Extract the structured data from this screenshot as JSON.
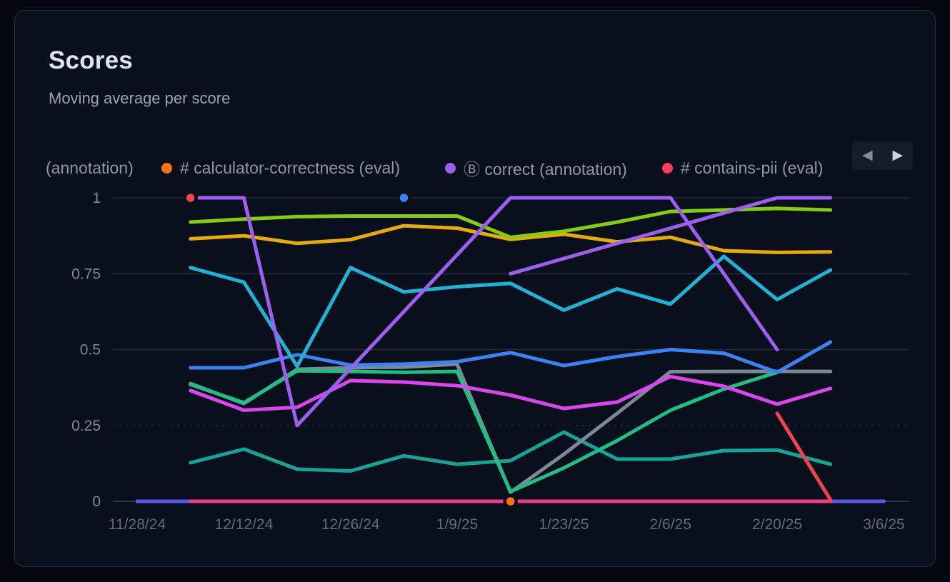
{
  "card": {
    "title": "Scores",
    "subtitle": "Moving average per score"
  },
  "legend": {
    "items": [
      {
        "label": "(annotation)",
        "color": null
      },
      {
        "label": "# calculator-correctness (eval)",
        "color": "#f97316"
      },
      {
        "label": "Ⓑ correct (annotation)",
        "color": "#9d5ef2"
      },
      {
        "label": "# contains-pii (eval)",
        "color": "#fb3d55"
      }
    ],
    "nav": {
      "prev_icon": "◀",
      "next_icon": "▶"
    }
  },
  "chart_data": {
    "type": "line",
    "title": "Scores",
    "subtitle": "Moving average per score",
    "x_axis": {
      "tick_labels": [
        "11/28/24",
        "12/12/24",
        "12/26/24",
        "1/9/25",
        "1/23/25",
        "2/6/25",
        "2/20/25",
        "3/6/25"
      ],
      "tick_weeks": [
        -1,
        1,
        3,
        5,
        7,
        9,
        11,
        13
      ]
    },
    "y_axis": {
      "tick_labels": [
        "1",
        "0.75",
        "0.5",
        "0.25",
        "0"
      ],
      "tick_values": [
        1,
        0.75,
        0.5,
        0.25,
        0
      ],
      "range": [
        0,
        1
      ],
      "dashed_tick": 0.25
    },
    "week_dates": [
      "12/5/24",
      "12/12/24",
      "12/19/24",
      "12/26/24",
      "1/2/25",
      "1/9/25",
      "1/16/25",
      "1/23/25",
      "1/30/25",
      "2/6/25",
      "2/13/25",
      "2/20/25",
      "2/27/25"
    ],
    "grid": true,
    "legend_position": "top",
    "series": [
      {
        "name": "indigo-baseline",
        "color": "#5558e8",
        "points": [
          [
            -1,
            0
          ],
          [
            13,
            0
          ]
        ]
      },
      {
        "name": "pink-baseline",
        "color": "#ed3e89",
        "points": [
          [
            0,
            0
          ],
          [
            12,
            0
          ]
        ]
      },
      {
        "name": "teal",
        "color": "#17a295",
        "points": [
          [
            0,
            0.127
          ],
          [
            1,
            0.172
          ],
          [
            2,
            0.106
          ],
          [
            3,
            0.1
          ],
          [
            4,
            0.15
          ],
          [
            5,
            0.122
          ],
          [
            6,
            0.134
          ],
          [
            7,
            0.228
          ],
          [
            8,
            0.139
          ],
          [
            9,
            0.139
          ],
          [
            10,
            0.167
          ],
          [
            11,
            0.169
          ],
          [
            12,
            0.122
          ]
        ]
      },
      {
        "name": "gray",
        "color": "#7e8795",
        "points": [
          [
            0,
            0.388
          ],
          [
            1,
            0.322
          ],
          [
            2,
            0.435
          ],
          [
            3,
            0.44
          ],
          [
            4,
            0.442
          ],
          [
            5,
            0.452
          ],
          [
            6,
            0.03
          ],
          [
            7,
            0.155
          ],
          [
            8,
            0.29
          ],
          [
            9,
            0.427
          ],
          [
            10,
            0.428
          ],
          [
            11,
            0.428
          ],
          [
            12,
            0.428
          ]
        ]
      },
      {
        "name": "emerald",
        "color": "#1fbe83",
        "points": [
          [
            0,
            0.385
          ],
          [
            1,
            0.325
          ],
          [
            2,
            0.43
          ],
          [
            3,
            0.428
          ],
          [
            4,
            0.425
          ],
          [
            5,
            0.428
          ],
          [
            6,
            0.032
          ],
          [
            7,
            0.11
          ],
          [
            8,
            0.2
          ],
          [
            9,
            0.3
          ],
          [
            10,
            0.37
          ],
          [
            11,
            0.425
          ]
        ]
      },
      {
        "name": "magenta",
        "color": "#d946ef",
        "points": [
          [
            0,
            0.365
          ],
          [
            1,
            0.3
          ],
          [
            2,
            0.31
          ],
          [
            3,
            0.398
          ],
          [
            4,
            0.393
          ],
          [
            5,
            0.381
          ],
          [
            6,
            0.35
          ],
          [
            7,
            0.306
          ],
          [
            8,
            0.327
          ],
          [
            9,
            0.411
          ],
          [
            10,
            0.379
          ],
          [
            11,
            0.32
          ],
          [
            12,
            0.372
          ]
        ]
      },
      {
        "name": "blue",
        "color": "#3b82f6",
        "points": [
          [
            0,
            0.44
          ],
          [
            1,
            0.44
          ],
          [
            2,
            0.483
          ],
          [
            3,
            0.449
          ],
          [
            4,
            0.452
          ],
          [
            5,
            0.46
          ],
          [
            6,
            0.49
          ],
          [
            7,
            0.447
          ],
          [
            8,
            0.477
          ],
          [
            9,
            0.5
          ],
          [
            10,
            0.488
          ],
          [
            11,
            0.425
          ],
          [
            12,
            0.525
          ]
        ]
      },
      {
        "name": "cyan",
        "color": "#1fb2d5",
        "points": [
          [
            0,
            0.77
          ],
          [
            1,
            0.722
          ],
          [
            2,
            0.445
          ],
          [
            3,
            0.77
          ],
          [
            4,
            0.69
          ],
          [
            5,
            0.707
          ],
          [
            6,
            0.718
          ],
          [
            7,
            0.63
          ],
          [
            8,
            0.7
          ],
          [
            9,
            0.65
          ],
          [
            10,
            0.807
          ],
          [
            11,
            0.665
          ],
          [
            12,
            0.762
          ]
        ]
      },
      {
        "name": "amber",
        "color": "#e5a912",
        "points": [
          [
            0,
            0.865
          ],
          [
            1,
            0.875
          ],
          [
            2,
            0.85
          ],
          [
            3,
            0.862
          ],
          [
            4,
            0.908
          ],
          [
            5,
            0.9
          ],
          [
            6,
            0.863
          ],
          [
            7,
            0.88
          ],
          [
            8,
            0.855
          ],
          [
            9,
            0.87
          ],
          [
            10,
            0.826
          ],
          [
            11,
            0.82
          ],
          [
            12,
            0.822
          ]
        ]
      },
      {
        "name": "lime",
        "color": "#84cc16",
        "points": [
          [
            0,
            0.92
          ],
          [
            1,
            0.93
          ],
          [
            2,
            0.938
          ],
          [
            3,
            0.94
          ],
          [
            4,
            0.94
          ],
          [
            5,
            0.94
          ],
          [
            6,
            0.87
          ],
          [
            7,
            0.89
          ],
          [
            8,
            0.92
          ],
          [
            9,
            0.955
          ],
          [
            10,
            0.96
          ],
          [
            11,
            0.965
          ],
          [
            12,
            0.96
          ]
        ]
      },
      {
        "name": "purple-b",
        "color": "#9d5ef2",
        "points": [
          [
            6,
            0.75
          ],
          [
            11,
            1.0
          ],
          [
            12,
            1.0
          ]
        ]
      },
      {
        "name": "purple-a",
        "color": "#9d5ef2",
        "points": [
          [
            0,
            1.0
          ],
          [
            1,
            1.0
          ],
          [
            2,
            0.25
          ],
          [
            6,
            1.0
          ],
          [
            9,
            1.0
          ],
          [
            11,
            0.5
          ]
        ]
      },
      {
        "name": "red",
        "color": "#ef4450",
        "points": [
          [
            11,
            0.29
          ],
          [
            12,
            0.005
          ]
        ]
      }
    ],
    "markers": [
      {
        "name": "red-point",
        "week": 0,
        "value": 1.0,
        "color": "#ef4450"
      },
      {
        "name": "blue-point",
        "week": 4,
        "value": 1.0,
        "color": "#3b82f6"
      },
      {
        "name": "orange-point",
        "week": 6,
        "value": 0.0,
        "color": "#f97316"
      }
    ]
  },
  "theme": {
    "page_bg": "#04070e",
    "card_bg": "#0a0f1c",
    "grid_color": "#232a3a",
    "axis_color": "#353e52",
    "y_tick_color": "#7e8a9d",
    "x_tick_color": "#5f6a7e"
  }
}
